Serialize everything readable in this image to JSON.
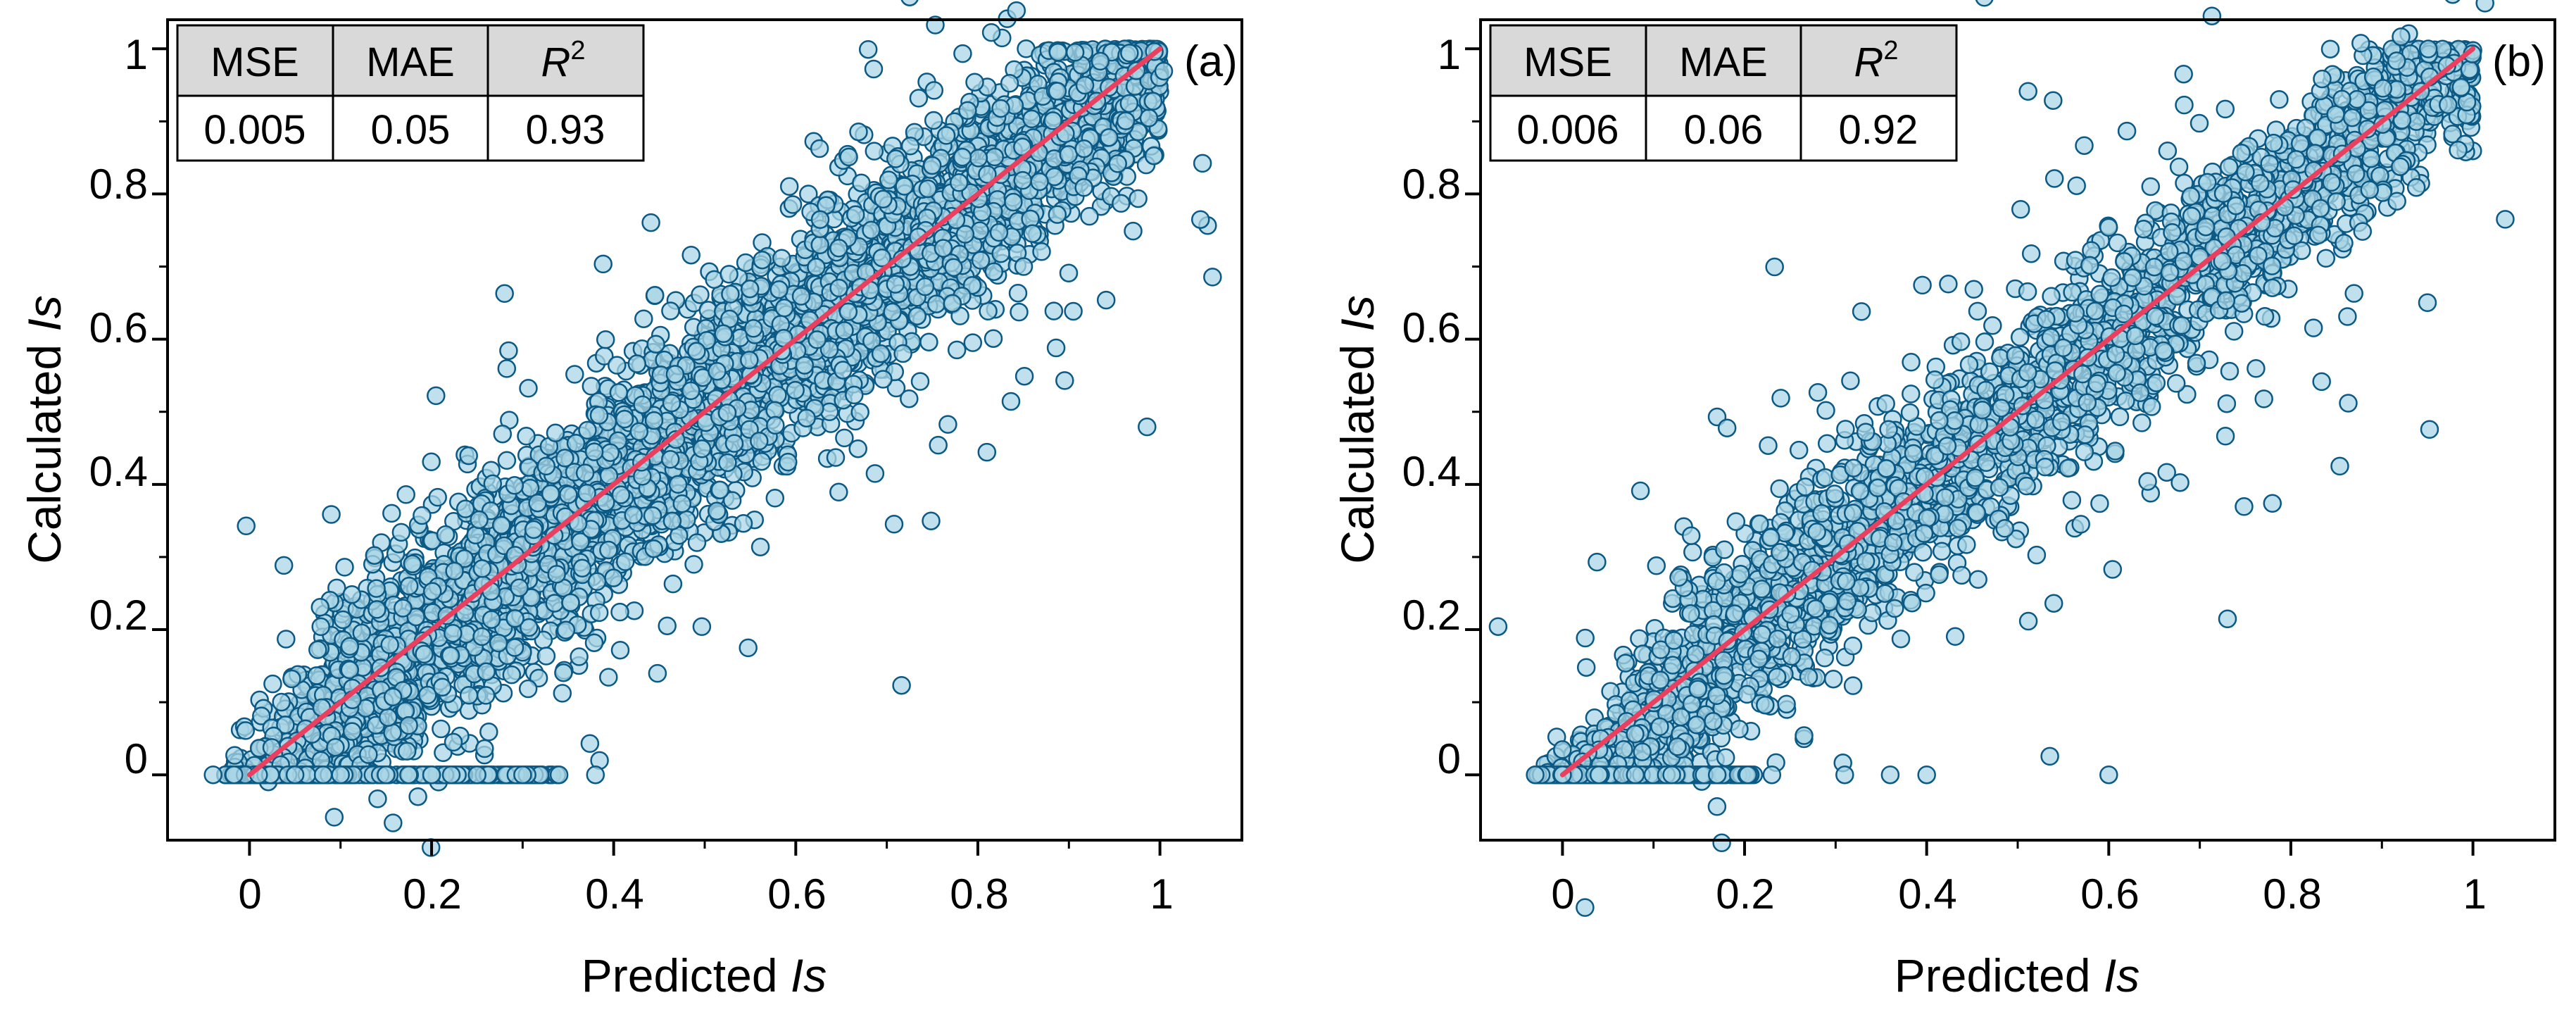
{
  "chart_data": [
    {
      "type": "scatter",
      "panel_label": "(a)",
      "xlabel": "Predicted",
      "ylabel": "Calculated",
      "variable": "Is",
      "xlim": [
        -0.09,
        1.09
      ],
      "ylim": [
        -0.09,
        1.04
      ],
      "xticks": [
        0,
        0.2,
        0.4,
        0.6,
        0.8,
        1
      ],
      "yticks": [
        0,
        0.2,
        0.4,
        0.6,
        0.8,
        1
      ],
      "xtick_labels": [
        "0",
        "0.2",
        "0.4",
        "0.6",
        "0.8",
        "1"
      ],
      "ytick_labels": [
        "0",
        "0.2",
        "0.4",
        "0.6",
        "0.8",
        "1"
      ],
      "reference_line": {
        "x": [
          0,
          1
        ],
        "y": [
          0,
          1
        ],
        "color": "#e8405e"
      },
      "marker_fill": "#a9d6e5",
      "marker_edge": "#0b5985",
      "stats": {
        "headers": [
          "MSE",
          "MAE",
          "R"
        ],
        "superscript": "2",
        "values": [
          "0.005",
          "0.05",
          "0.93"
        ]
      },
      "points": {
        "count": 4200,
        "spread": 0.055,
        "outliers": 260,
        "zero_row": [
          [
            -0.04,
            0
          ],
          [
            0.01,
            0
          ],
          [
            0.05,
            0
          ],
          [
            0.1,
            0
          ],
          [
            0.15,
            0
          ],
          [
            0.2,
            0
          ],
          [
            0.25,
            0
          ],
          [
            0.3,
            0
          ],
          [
            0.34,
            0
          ],
          [
            0.38,
            0
          ]
        ]
      }
    },
    {
      "type": "scatter",
      "panel_label": "(b)",
      "xlabel": "Predicted",
      "ylabel": "Calculated",
      "variable": "Is",
      "xlim": [
        -0.09,
        1.09
      ],
      "ylim": [
        -0.09,
        1.04
      ],
      "xticks": [
        0,
        0.2,
        0.4,
        0.6,
        0.8,
        1
      ],
      "yticks": [
        0,
        0.2,
        0.4,
        0.6,
        0.8,
        1
      ],
      "xtick_labels": [
        "0",
        "0.2",
        "0.4",
        "0.6",
        "0.8",
        "1"
      ],
      "ytick_labels": [
        "0",
        "0.2",
        "0.4",
        "0.6",
        "0.8",
        "1"
      ],
      "reference_line": {
        "x": [
          0,
          1
        ],
        "y": [
          0,
          1
        ],
        "color": "#e8405e"
      },
      "marker_fill": "#a9d6e5",
      "marker_edge": "#0b5985",
      "stats": {
        "headers": [
          "MSE",
          "MAE",
          "R"
        ],
        "superscript": "2",
        "values": [
          "0.006",
          "0.06",
          "0.92"
        ]
      },
      "points": {
        "count": 2400,
        "spread": 0.05,
        "outliers": 220,
        "zero_row": [
          [
            -0.03,
            0
          ],
          [
            0.0,
            0
          ],
          [
            0.04,
            0
          ],
          [
            0.08,
            0
          ],
          [
            0.12,
            0
          ],
          [
            0.17,
            0
          ],
          [
            0.23,
            0
          ],
          [
            0.31,
            0
          ],
          [
            0.36,
            0
          ],
          [
            0.4,
            0
          ],
          [
            0.6,
            0
          ]
        ]
      }
    }
  ]
}
